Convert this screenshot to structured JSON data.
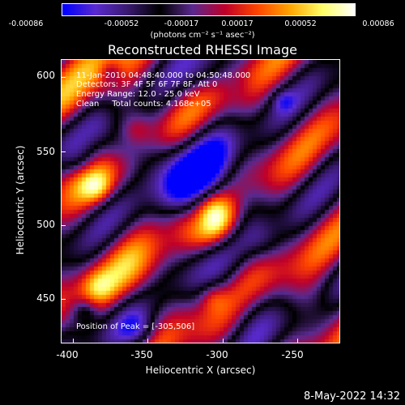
{
  "colorbar": {
    "ticks": [
      "-0.00086",
      "-0.00052",
      "-0.00017",
      "0.00017",
      "0.00052",
      "0.00086"
    ],
    "label": "(photons cm⁻² s⁻¹ asec⁻²)",
    "colors": [
      "#0000ff",
      "#5a2bd0",
      "#3a1a70",
      "#000000",
      "#5a2a90",
      "#c0002a",
      "#ff4500",
      "#ffa500",
      "#ffff66",
      "#ffffff"
    ]
  },
  "title": "Reconstructed RHESSI Image",
  "overlay": {
    "line1": "11-Jan-2010 04:48:40.000 to 04:50:48.000",
    "line2": "Detectors: 3F 4F 5F 6F 7F 8F, Att 0",
    "line3": "Energy Range: 12.0 - 25.0 keV",
    "line4": "Clean     Total counts: 4.168e+05",
    "peak": "Position of Peak = [-305,506]"
  },
  "axes": {
    "xlabel": "Heliocentric X (arcsec)",
    "ylabel": "Heliocentric Y (arcsec)",
    "xticks": [
      "-400",
      "-350",
      "-300",
      "-250"
    ],
    "yticks": [
      "600",
      "550",
      "500",
      "450"
    ]
  },
  "footer": {
    "date": "8-May-2022 14:32"
  }
}
